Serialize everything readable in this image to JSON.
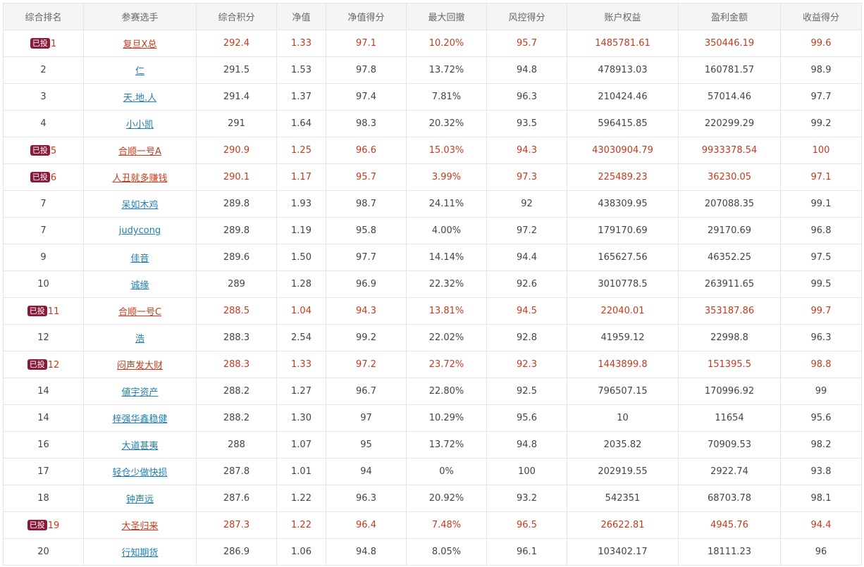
{
  "ranking_table": {
    "headers": [
      "综合排名",
      "参赛选手",
      "综合积分",
      "净值",
      "净值得分",
      "最大回撤",
      "风控得分",
      "账户权益",
      "盈利金额",
      "收益得分"
    ],
    "invested_badge_label": "已投",
    "rows": [
      {
        "invested": true,
        "rank": "1",
        "player": "复旦X总",
        "score": "292.4",
        "nav": "1.33",
        "nav_score": "97.1",
        "max_drawdown": "10.20%",
        "risk_score": "95.7",
        "equity": "1485781.61",
        "profit": "350446.19",
        "return_score": "99.6"
      },
      {
        "invested": false,
        "rank": "2",
        "player": "仁",
        "score": "291.5",
        "nav": "1.53",
        "nav_score": "97.8",
        "max_drawdown": "13.72%",
        "risk_score": "94.8",
        "equity": "478913.03",
        "profit": "160781.57",
        "return_score": "98.9"
      },
      {
        "invested": false,
        "rank": "3",
        "player": "天.地.人",
        "score": "291.4",
        "nav": "1.37",
        "nav_score": "97.4",
        "max_drawdown": "7.81%",
        "risk_score": "96.3",
        "equity": "210424.46",
        "profit": "57014.46",
        "return_score": "97.7"
      },
      {
        "invested": false,
        "rank": "4",
        "player": "小小凯",
        "score": "291",
        "nav": "1.64",
        "nav_score": "98.3",
        "max_drawdown": "20.32%",
        "risk_score": "93.5",
        "equity": "596415.85",
        "profit": "220299.29",
        "return_score": "99.2"
      },
      {
        "invested": true,
        "rank": "5",
        "player": "合顺一号A",
        "score": "290.9",
        "nav": "1.25",
        "nav_score": "96.6",
        "max_drawdown": "15.03%",
        "risk_score": "94.3",
        "equity": "43030904.79",
        "profit": "9933378.54",
        "return_score": "100"
      },
      {
        "invested": true,
        "rank": "6",
        "player": "人丑就多赚钱",
        "score": "290.1",
        "nav": "1.17",
        "nav_score": "95.7",
        "max_drawdown": "3.99%",
        "risk_score": "97.3",
        "equity": "225489.23",
        "profit": "36230.05",
        "return_score": "97.1"
      },
      {
        "invested": false,
        "rank": "7",
        "player": "呆如木鸡",
        "score": "289.8",
        "nav": "1.93",
        "nav_score": "98.7",
        "max_drawdown": "24.11%",
        "risk_score": "92",
        "equity": "438309.95",
        "profit": "207088.35",
        "return_score": "99.1"
      },
      {
        "invested": false,
        "rank": "7",
        "player": "judycong",
        "score": "289.8",
        "nav": "1.19",
        "nav_score": "95.8",
        "max_drawdown": "4.00%",
        "risk_score": "97.2",
        "equity": "179170.69",
        "profit": "29170.69",
        "return_score": "96.8"
      },
      {
        "invested": false,
        "rank": "9",
        "player": "佳音",
        "score": "289.6",
        "nav": "1.50",
        "nav_score": "97.7",
        "max_drawdown": "14.14%",
        "risk_score": "94.4",
        "equity": "165627.56",
        "profit": "46352.25",
        "return_score": "97.5"
      },
      {
        "invested": false,
        "rank": "10",
        "player": "诚缘",
        "score": "289",
        "nav": "1.28",
        "nav_score": "96.9",
        "max_drawdown": "22.32%",
        "risk_score": "92.6",
        "equity": "3010778.5",
        "profit": "263911.65",
        "return_score": "99.5"
      },
      {
        "invested": true,
        "rank": "11",
        "player": "合顺一号C",
        "score": "288.5",
        "nav": "1.04",
        "nav_score": "94.3",
        "max_drawdown": "13.81%",
        "risk_score": "94.5",
        "equity": "22040.01",
        "profit": "353187.86",
        "return_score": "99.7"
      },
      {
        "invested": false,
        "rank": "12",
        "player": "浩",
        "score": "288.3",
        "nav": "2.54",
        "nav_score": "99.2",
        "max_drawdown": "22.02%",
        "risk_score": "92.8",
        "equity": "41959.12",
        "profit": "22998.8",
        "return_score": "96.3"
      },
      {
        "invested": true,
        "rank": "12",
        "player": "闷声发大财",
        "score": "288.3",
        "nav": "1.33",
        "nav_score": "97.2",
        "max_drawdown": "23.72%",
        "risk_score": "92.3",
        "equity": "1443899.8",
        "profit": "151395.5",
        "return_score": "98.8"
      },
      {
        "invested": false,
        "rank": "14",
        "player": "値宇资产",
        "score": "288.2",
        "nav": "1.27",
        "nav_score": "96.7",
        "max_drawdown": "22.80%",
        "risk_score": "92.5",
        "equity": "796507.15",
        "profit": "170996.92",
        "return_score": "99"
      },
      {
        "invested": false,
        "rank": "14",
        "player": "梓强华鑫稳健",
        "score": "288.2",
        "nav": "1.30",
        "nav_score": "97",
        "max_drawdown": "10.29%",
        "risk_score": "95.6",
        "equity": "10",
        "profit": "11654",
        "return_score": "95.6"
      },
      {
        "invested": false,
        "rank": "16",
        "player": "大道甚夷",
        "score": "288",
        "nav": "1.07",
        "nav_score": "95",
        "max_drawdown": "13.72%",
        "risk_score": "94.8",
        "equity": "2035.82",
        "profit": "70909.53",
        "return_score": "98.2"
      },
      {
        "invested": false,
        "rank": "17",
        "player": "轻仓少做快损",
        "score": "287.8",
        "nav": "1.01",
        "nav_score": "94",
        "max_drawdown": "0%",
        "risk_score": "100",
        "equity": "202919.55",
        "profit": "2922.74",
        "return_score": "93.8"
      },
      {
        "invested": false,
        "rank": "18",
        "player": "钟声远",
        "score": "287.6",
        "nav": "1.22",
        "nav_score": "96.3",
        "max_drawdown": "20.92%",
        "risk_score": "93.2",
        "equity": "542351",
        "profit": "68703.78",
        "return_score": "98.1"
      },
      {
        "invested": true,
        "rank": "19",
        "player": "大圣归来",
        "score": "287.3",
        "nav": "1.22",
        "nav_score": "96.4",
        "max_drawdown": "7.48%",
        "risk_score": "96.5",
        "equity": "26622.81",
        "profit": "4945.76",
        "return_score": "94.4"
      },
      {
        "invested": false,
        "rank": "20",
        "player": "行知期货",
        "score": "286.9",
        "nav": "1.06",
        "nav_score": "94.8",
        "max_drawdown": "8.05%",
        "risk_score": "96.1",
        "equity": "103402.17",
        "profit": "18111.23",
        "return_score": "96"
      }
    ]
  },
  "colors": {
    "header_bg": "#f5f5f5",
    "border": "#e4e4e4",
    "invested_text": "#c63a1c",
    "link": "#1f7fb3",
    "badge_bg": "#8b1a3a"
  }
}
